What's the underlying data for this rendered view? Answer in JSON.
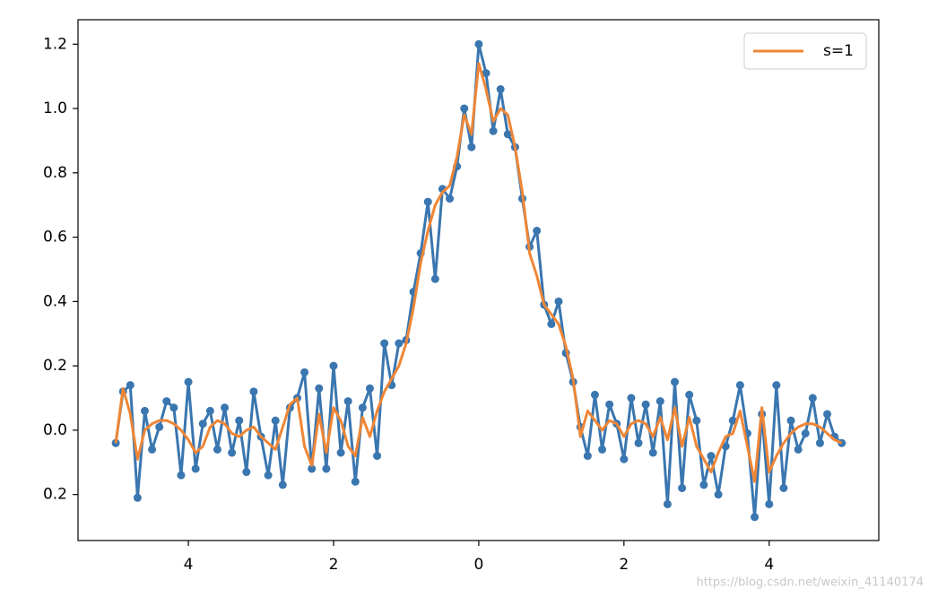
{
  "chart_data": {
    "type": "line",
    "x": [
      -5.0,
      -4.9,
      -4.8,
      -4.7,
      -4.6,
      -4.5,
      -4.4,
      -4.3,
      -4.2,
      -4.1,
      -4.0,
      -3.9,
      -3.8,
      -3.7,
      -3.6,
      -3.5,
      -3.4,
      -3.3,
      -3.2,
      -3.1,
      -3.0,
      -2.9,
      -2.8,
      -2.7,
      -2.6,
      -2.5,
      -2.4,
      -2.3,
      -2.2,
      -2.1,
      -2.0,
      -1.9,
      -1.8,
      -1.7,
      -1.6,
      -1.5,
      -1.4,
      -1.3,
      -1.2,
      -1.1,
      -1.0,
      -0.9,
      -0.8,
      -0.7,
      -0.6,
      -0.5,
      -0.4,
      -0.3,
      -0.2,
      -0.1,
      0.0,
      0.1,
      0.2,
      0.3,
      0.4,
      0.5,
      0.6,
      0.7,
      0.8,
      0.9,
      1.0,
      1.1,
      1.2,
      1.3,
      1.4,
      1.5,
      1.6,
      1.7,
      1.8,
      1.9,
      2.0,
      2.1,
      2.2,
      2.3,
      2.4,
      2.5,
      2.6,
      2.7,
      2.8,
      2.9,
      3.0,
      3.1,
      3.2,
      3.3,
      3.4,
      3.5,
      3.6,
      3.7,
      3.8,
      3.9,
      4.0,
      4.1,
      4.2,
      4.3,
      4.4,
      4.5,
      4.6,
      4.7,
      4.8,
      4.9,
      5.0
    ],
    "series": [
      {
        "color": "#3a76af",
        "markers": true,
        "values": [
          -0.04,
          0.12,
          0.14,
          -0.21,
          0.06,
          -0.06,
          0.01,
          0.09,
          0.07,
          -0.14,
          0.15,
          -0.12,
          0.02,
          0.06,
          -0.06,
          0.07,
          -0.07,
          0.03,
          -0.13,
          0.12,
          -0.02,
          -0.14,
          0.03,
          -0.17,
          0.07,
          0.1,
          0.18,
          -0.12,
          0.13,
          -0.12,
          0.2,
          -0.07,
          0.09,
          -0.16,
          0.07,
          0.13,
          -0.08,
          0.27,
          0.14,
          0.27,
          0.28,
          0.43,
          0.55,
          0.71,
          0.47,
          0.75,
          0.72,
          0.82,
          1.0,
          0.88,
          1.2,
          1.11,
          0.93,
          1.06,
          0.92,
          0.88,
          0.72,
          0.57,
          0.62,
          0.39,
          0.33,
          0.4,
          0.24,
          0.15,
          0.01,
          -0.08,
          0.11,
          -0.06,
          0.08,
          0.02,
          -0.09,
          0.1,
          -0.04,
          0.08,
          -0.07,
          0.09,
          -0.23,
          0.15,
          -0.18,
          0.11,
          0.03,
          -0.17,
          -0.08,
          -0.2,
          -0.05,
          0.03,
          0.14,
          -0.01,
          -0.27,
          0.05,
          -0.23,
          0.14,
          -0.18,
          0.03,
          -0.06,
          -0.01,
          0.1,
          -0.04,
          0.05,
          -0.02,
          -0.04
        ]
      },
      {
        "name": "s=1",
        "color": "#ef8636",
        "markers": false,
        "values": [
          -0.04,
          0.13,
          0.05,
          -0.09,
          0.0,
          0.02,
          0.03,
          0.03,
          0.02,
          0.0,
          -0.03,
          -0.07,
          -0.05,
          0.01,
          0.03,
          0.02,
          -0.01,
          -0.02,
          0.0,
          0.01,
          -0.02,
          -0.04,
          -0.06,
          0.01,
          0.08,
          0.1,
          -0.05,
          -0.11,
          0.05,
          -0.07,
          0.07,
          0.03,
          -0.05,
          -0.08,
          0.04,
          -0.02,
          0.06,
          0.12,
          0.16,
          0.2,
          0.27,
          0.38,
          0.52,
          0.62,
          0.7,
          0.74,
          0.76,
          0.85,
          0.98,
          0.92,
          1.14,
          1.06,
          0.96,
          1.0,
          0.98,
          0.88,
          0.74,
          0.55,
          0.48,
          0.39,
          0.36,
          0.33,
          0.26,
          0.16,
          -0.02,
          0.06,
          0.03,
          0.0,
          0.03,
          0.02,
          -0.02,
          0.02,
          0.03,
          0.02,
          -0.02,
          0.04,
          -0.03,
          0.07,
          -0.05,
          0.04,
          -0.05,
          -0.09,
          -0.13,
          -0.07,
          -0.02,
          -0.01,
          0.06,
          -0.05,
          -0.16,
          0.07,
          -0.13,
          -0.08,
          -0.04,
          -0.01,
          0.01,
          0.02,
          0.02,
          0.01,
          -0.01,
          -0.03,
          -0.04
        ]
      }
    ],
    "xlim": [
      -5.52,
      5.51
    ],
    "ylim": [
      -0.343,
      1.276
    ],
    "xticks": [
      {
        "value": -4,
        "label": "4"
      },
      {
        "value": -2,
        "label": "2"
      },
      0,
      2,
      4
    ],
    "yticks": [
      {
        "value": -0.2,
        "label": "0.2"
      },
      {
        "value": 0,
        "label": "0.0"
      },
      0.2,
      0.4,
      0.6,
      0.8,
      {
        "value": 1,
        "label": "1.0"
      },
      1.2
    ],
    "legend": "upper right",
    "watermark": "https://blog.csdn.net/weixin_41140174"
  }
}
